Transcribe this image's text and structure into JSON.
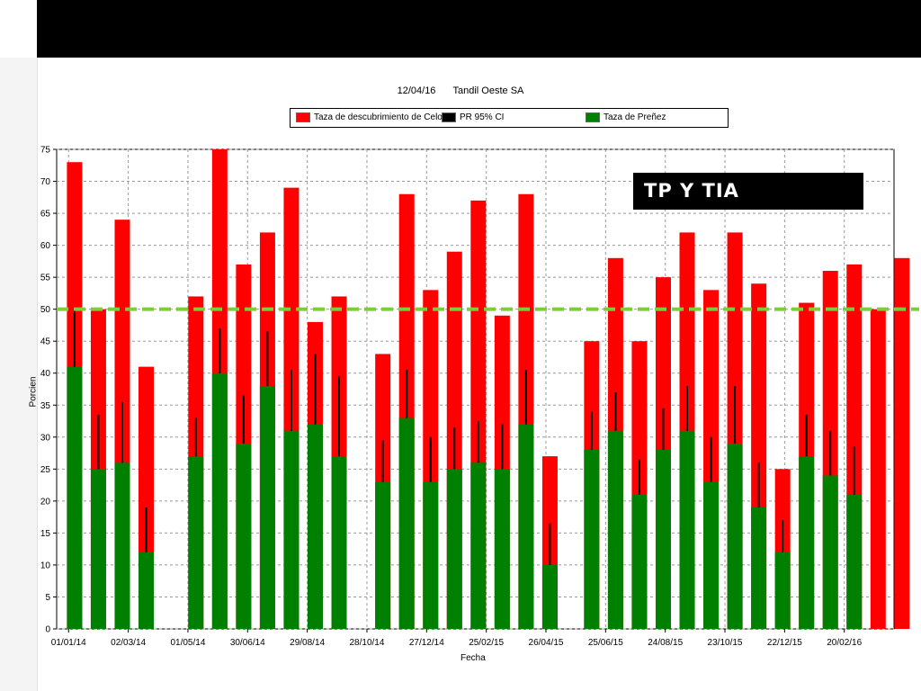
{
  "chart_data": {
    "type": "bar",
    "title_date": "12/04/16",
    "title_name": "Tandil Oeste SA",
    "xlabel": "Fecha",
    "ylabel": "Porcien",
    "ylim": [
      0,
      75
    ],
    "yticks": [
      0,
      5,
      10,
      15,
      20,
      25,
      30,
      35,
      40,
      45,
      50,
      55,
      60,
      65,
      70,
      75
    ],
    "grid": true,
    "legend_position": "top",
    "reference_line": {
      "value": 50,
      "color": "#7ccc3c"
    },
    "annotation": "TP Y TIA",
    "x_range": [
      "2013-12-20",
      "2016-04-10"
    ],
    "xticks": [
      {
        "label": "01/01/14",
        "date": "2014-01-01"
      },
      {
        "label": "02/03/14",
        "date": "2014-03-02"
      },
      {
        "label": "01/05/14",
        "date": "2014-05-01"
      },
      {
        "label": "30/06/14",
        "date": "2014-06-30"
      },
      {
        "label": "29/08/14",
        "date": "2014-08-29"
      },
      {
        "label": "28/10/14",
        "date": "2014-10-28"
      },
      {
        "label": "27/12/14",
        "date": "2014-12-27"
      },
      {
        "label": "25/02/15",
        "date": "2015-02-25"
      },
      {
        "label": "26/04/15",
        "date": "2015-04-26"
      },
      {
        "label": "25/06/15",
        "date": "2015-06-25"
      },
      {
        "label": "24/08/15",
        "date": "2015-08-24"
      },
      {
        "label": "23/10/15",
        "date": "2015-10-23"
      },
      {
        "label": "22/12/15",
        "date": "2015-12-22"
      },
      {
        "label": "20/02/16",
        "date": "2016-02-20"
      }
    ],
    "series": [
      {
        "name": "Taza de descubrimiento de Celos",
        "color": "#ff0000"
      },
      {
        "name": "PR 95% CI",
        "color": "#000000"
      },
      {
        "name": "Taza de Preñez",
        "color": "#008000"
      }
    ],
    "bars": [
      {
        "date": "2014-01-07",
        "celos": 73,
        "prenez": 41,
        "ci": [
          41,
          50
        ]
      },
      {
        "date": "2014-01-31",
        "celos": 50,
        "prenez": 25,
        "ci": [
          25,
          33.5
        ]
      },
      {
        "date": "2014-02-24",
        "celos": 64,
        "prenez": 26,
        "ci": [
          26,
          35.5
        ]
      },
      {
        "date": "2014-03-20",
        "celos": 41,
        "prenez": 12,
        "ci": [
          12,
          19
        ]
      },
      {
        "date": "2014-05-09",
        "celos": 52,
        "prenez": 27,
        "ci": [
          27,
          33
        ]
      },
      {
        "date": "2014-06-02",
        "celos": 75,
        "prenez": 40,
        "ci": [
          40,
          47
        ]
      },
      {
        "date": "2014-06-26",
        "celos": 57,
        "prenez": 29,
        "ci": [
          29,
          36.5
        ]
      },
      {
        "date": "2014-07-20",
        "celos": 62,
        "prenez": 38,
        "ci": [
          38,
          46.5
        ]
      },
      {
        "date": "2014-08-13",
        "celos": 69,
        "prenez": 31,
        "ci": [
          31,
          40.5
        ]
      },
      {
        "date": "2014-09-06",
        "celos": 48,
        "prenez": 32,
        "ci": [
          32,
          43
        ]
      },
      {
        "date": "2014-09-30",
        "celos": 52,
        "prenez": 27,
        "ci": [
          27,
          39.5
        ]
      },
      {
        "date": "2014-11-13",
        "celos": 43,
        "prenez": 23,
        "ci": [
          23,
          29.5
        ]
      },
      {
        "date": "2014-12-07",
        "celos": 68,
        "prenez": 33,
        "ci": [
          33,
          40.5
        ]
      },
      {
        "date": "2014-12-31",
        "celos": 53,
        "prenez": 23,
        "ci": [
          23,
          30
        ]
      },
      {
        "date": "2015-01-24",
        "celos": 59,
        "prenez": 25,
        "ci": [
          25,
          31.5
        ]
      },
      {
        "date": "2015-02-17",
        "celos": 67,
        "prenez": 26,
        "ci": [
          26,
          32.5
        ]
      },
      {
        "date": "2015-03-13",
        "celos": 49,
        "prenez": 25,
        "ci": [
          25,
          32
        ]
      },
      {
        "date": "2015-04-06",
        "celos": 68,
        "prenez": 32,
        "ci": [
          32,
          40.5
        ]
      },
      {
        "date": "2015-04-30",
        "celos": 27,
        "prenez": 10,
        "ci": [
          10,
          16.5
        ]
      },
      {
        "date": "2015-06-11",
        "celos": 45,
        "prenez": 28,
        "ci": [
          28,
          34
        ]
      },
      {
        "date": "2015-07-05",
        "celos": 58,
        "prenez": 31,
        "ci": [
          31,
          37
        ]
      },
      {
        "date": "2015-07-29",
        "celos": 45,
        "prenez": 21,
        "ci": [
          21,
          26.5
        ]
      },
      {
        "date": "2015-08-22",
        "celos": 55,
        "prenez": 28,
        "ci": [
          28,
          34.5
        ]
      },
      {
        "date": "2015-09-15",
        "celos": 62,
        "prenez": 31,
        "ci": [
          31,
          38
        ]
      },
      {
        "date": "2015-10-09",
        "celos": 53,
        "prenez": 23,
        "ci": [
          23,
          30
        ]
      },
      {
        "date": "2015-11-02",
        "celos": 62,
        "prenez": 29,
        "ci": [
          29,
          38
        ]
      },
      {
        "date": "2015-11-26",
        "celos": 54,
        "prenez": 19,
        "ci": [
          19,
          26
        ]
      },
      {
        "date": "2015-12-20",
        "celos": 25,
        "prenez": 12,
        "ci": [
          12,
          17
        ]
      },
      {
        "date": "2016-01-13",
        "celos": 51,
        "prenez": 27,
        "ci": [
          27,
          33.5
        ]
      },
      {
        "date": "2016-02-06",
        "celos": 56,
        "prenez": 24,
        "ci": [
          24,
          31
        ]
      },
      {
        "date": "2016-03-01",
        "celos": 57,
        "prenez": 21,
        "ci": [
          21,
          28.5
        ]
      },
      {
        "date": "2016-03-25",
        "celos": 50,
        "prenez": 0,
        "ci": null
      },
      {
        "date": "2016-04-18",
        "celos": 58,
        "prenez": 0,
        "ci": null
      }
    ]
  }
}
